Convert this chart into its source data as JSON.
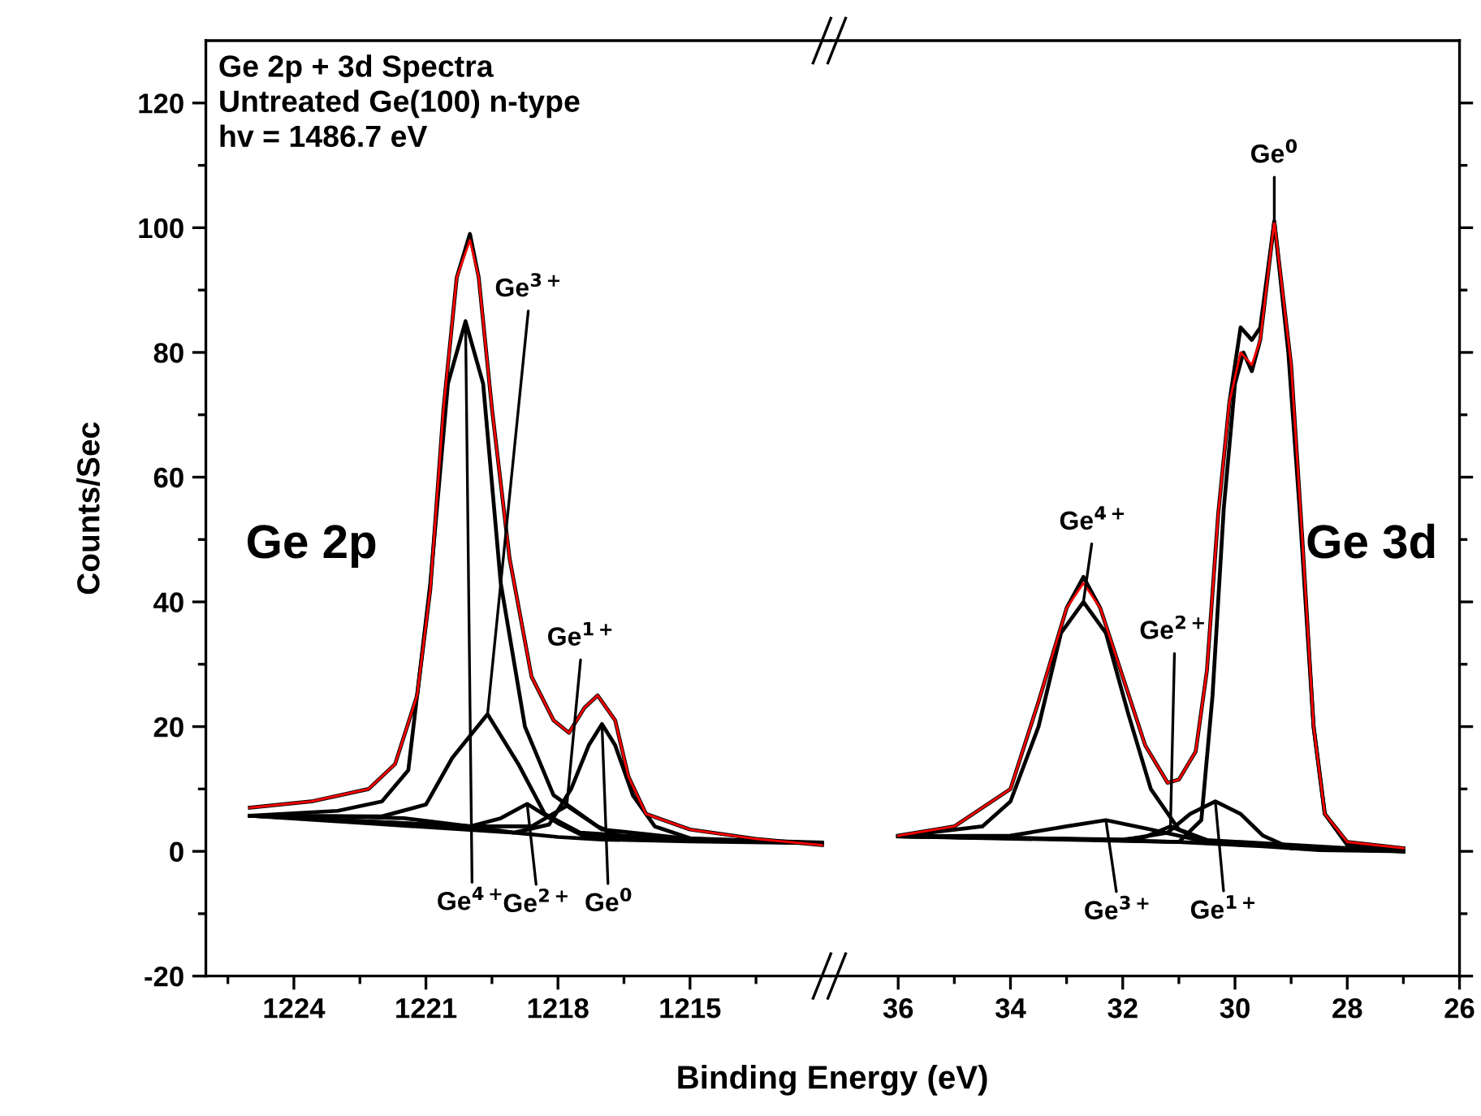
{
  "chart_data": [
    {
      "type": "line",
      "title": "Ge 2p + 3d Spectra\nUntreated Ge(100) n-type\nhv = 1486.7 eV",
      "ylabel": "Counts/Sec",
      "xlim": [
        1226,
        1211.8
      ],
      "xticks": [
        {
          "value": 1225.5,
          "label": null
        },
        1224,
        {
          "value": 1222.5,
          "label": null
        },
        1221,
        {
          "value": 1219.5,
          "label": null
        },
        1218,
        {
          "value": 1216.5,
          "label": null
        },
        1215,
        {
          "value": 1213.5,
          "label": null
        }
      ],
      "ylim": [
        -20,
        130
      ],
      "yticks": [
        -20,
        {
          "value": -10,
          "label": null
        },
        0,
        {
          "value": 10,
          "label": null
        },
        20,
        {
          "value": 30,
          "label": null
        },
        40,
        {
          "value": 50,
          "label": null
        },
        60,
        {
          "value": 70,
          "label": null
        },
        80,
        {
          "value": 90,
          "label": null
        },
        100,
        {
          "value": 110,
          "label": null
        },
        120
      ],
      "series": [
        {
          "color": "#000000",
          "x": [
            1225.0,
            1223.6,
            1222.3,
            1221.7,
            1221.2,
            1220.9,
            1220.6,
            1220.3,
            1220.0,
            1219.8,
            1219.5,
            1219.1,
            1218.6,
            1218.1,
            1217.75,
            1217.4,
            1217.1,
            1216.7,
            1216.4,
            1216.0,
            1215.0,
            1213.5,
            1212.0
          ],
          "values": [
            7,
            8,
            10,
            14,
            25,
            42,
            71,
            92,
            99,
            92,
            71,
            47,
            28,
            21,
            19,
            23,
            25,
            21,
            12,
            6,
            3.5,
            2,
            1
          ]
        },
        {
          "color": "#000000",
          "x": [
            1225,
            1223,
            1221.5,
            1220,
            1219,
            1218,
            1217,
            1215,
            1212
          ],
          "values": [
            5.7,
            5.6,
            5.3,
            4,
            3,
            2.3,
            1.9,
            1.6,
            1.3
          ]
        },
        {
          "color": "#000000",
          "x": [
            1225,
            1223,
            1222,
            1221.4,
            1220.9,
            1220.5,
            1220.1,
            1219.7,
            1219.3,
            1218.75,
            1218.1,
            1217,
            1215,
            1212
          ],
          "values": [
            5.7,
            6.5,
            8,
            13,
            43,
            75,
            85,
            75,
            43,
            20,
            9,
            3.5,
            2,
            1.4
          ]
        },
        {
          "color": "#000000",
          "x": [
            1225,
            1222,
            1221,
            1220.4,
            1219.6,
            1218.9,
            1218.3,
            1217.5,
            1215,
            1212
          ],
          "values": [
            5.7,
            5.6,
            7.5,
            15,
            22,
            14,
            6,
            3,
            1.8,
            1.3
          ]
        },
        {
          "color": "#000000",
          "x": [
            1225,
            1220,
            1219.3,
            1218.7,
            1218.0,
            1217.4,
            1212
          ],
          "values": [
            5.7,
            4,
            5.3,
            7.6,
            4.5,
            2.4,
            1.3
          ]
        },
        {
          "color": "#000000",
          "x": [
            1225,
            1220,
            1218.6,
            1217.8,
            1217.1,
            1216.5,
            1212
          ],
          "values": [
            5.7,
            4,
            4,
            7.3,
            4,
            2.2,
            1.3
          ]
        },
        {
          "color": "#000000",
          "x": [
            1225,
            1219,
            1218.2,
            1217.7,
            1217.3,
            1217.0,
            1216.7,
            1216.3,
            1215.8,
            1215,
            1212
          ],
          "values": [
            5.7,
            3,
            4.3,
            10,
            17,
            20.4,
            17,
            9,
            4,
            2.1,
            1.3
          ]
        },
        {
          "color": "#ff0000",
          "x": [
            1225.0,
            1223.6,
            1222.3,
            1221.7,
            1221.2,
            1220.9,
            1220.6,
            1220.3,
            1220.0,
            1219.8,
            1219.5,
            1219.1,
            1218.6,
            1218.1,
            1217.75,
            1217.4,
            1217.1,
            1216.7,
            1216.4,
            1216.0,
            1215.0,
            1213.5,
            1212.0
          ],
          "values": [
            7,
            8,
            10,
            14,
            25,
            42,
            71,
            92,
            98,
            92,
            71,
            47,
            28,
            21,
            19,
            23,
            25,
            21,
            12,
            6,
            3.5,
            2,
            1
          ]
        }
      ],
      "annotations": [
        "Ge 2p",
        {
          "text": "Ge$^{4+}$",
          "x": 1220.1,
          "y": 85
        },
        {
          "text": "Ge$^{3+}$",
          "x": 1219.6,
          "y": 22
        },
        {
          "text": "Ge$^{2+}$",
          "x": 1218.7,
          "y": 7.6
        },
        {
          "text": "Ge$^{1+}$",
          "x": 1217.8,
          "y": 7.3
        },
        {
          "text": "Ge$^{0}$",
          "x": 1217.0,
          "y": 20.4
        }
      ]
    },
    {
      "type": "line",
      "xlabel": "Binding Energy (eV)",
      "tick_labels": "x",
      "xlim": [
        37.2,
        26
      ],
      "xticks": [
        36,
        {
          "value": 35,
          "label": null
        },
        34,
        {
          "value": 33,
          "label": null
        },
        32,
        {
          "value": 31,
          "label": null
        },
        30,
        {
          "value": 29,
          "label": null
        },
        28,
        {
          "value": 27,
          "label": null
        },
        26
      ],
      "ylim": [
        -20,
        130
      ],
      "yticks": [
        -20,
        {
          "value": -10,
          "label": null
        },
        0,
        {
          "value": 10,
          "label": null
        },
        20,
        {
          "value": 30,
          "label": null
        },
        40,
        {
          "value": 50,
          "label": null
        },
        60,
        {
          "value": 70,
          "label": null
        },
        80,
        {
          "value": 90,
          "label": null
        },
        100,
        {
          "value": 110,
          "label": null
        },
        120
      ],
      "series": [
        {
          "color": "#000000",
          "x": [
            36.0,
            35.0,
            34.0,
            33.5,
            33.0,
            32.7,
            32.4,
            32.0,
            31.6,
            31.2,
            31.0,
            30.7,
            30.5,
            30.3,
            30.1,
            29.9,
            29.7,
            29.55,
            29.3,
            29.0,
            28.8,
            28.6,
            28.4,
            28.0,
            27.0
          ],
          "values": [
            2.5,
            4,
            10,
            24,
            39,
            44,
            39,
            28,
            17,
            11,
            11.5,
            16,
            29,
            54,
            72,
            84,
            82,
            84,
            101,
            78,
            50,
            20,
            6,
            1.5,
            0.5
          ]
        },
        {
          "color": "#000000",
          "x": [
            36,
            33,
            31,
            29.5,
            28.5,
            27
          ],
          "values": [
            2.4,
            2,
            1.5,
            0.8,
            0.2,
            0
          ]
        },
        {
          "color": "#000000",
          "x": [
            36,
            34.5,
            34,
            33.5,
            33.1,
            32.7,
            32.3,
            31.9,
            31.5,
            31,
            30.5,
            27
          ],
          "values": [
            2.4,
            4,
            8,
            20,
            35,
            40,
            35,
            22,
            10,
            3.5,
            1.8,
            0
          ]
        },
        {
          "color": "#000000",
          "x": [
            36,
            34,
            33,
            32.3,
            31.5,
            30.5,
            27
          ],
          "values": [
            2.4,
            2.5,
            4,
            5,
            3.5,
            1.5,
            0
          ]
        },
        {
          "color": "#000000",
          "x": [
            36,
            32,
            31.6,
            31.15,
            30.7,
            30.3,
            27
          ],
          "values": [
            2.4,
            1.9,
            2.3,
            4,
            2.3,
            1.3,
            0
          ]
        },
        {
          "color": "#000000",
          "x": [
            36,
            32,
            31.2,
            30.8,
            30.35,
            29.9,
            29.5,
            29,
            27
          ],
          "values": [
            2.4,
            1.8,
            3,
            6,
            8,
            6,
            2.5,
            0.5,
            0
          ]
        },
        {
          "color": "#000000",
          "x": [
            36,
            31,
            30.6,
            30.4,
            30.2,
            30.0,
            29.85,
            29.7,
            29.55,
            29.3,
            29.05,
            28.85,
            28.6,
            28.4,
            28,
            27
          ],
          "values": [
            2.4,
            1.5,
            5,
            25,
            55,
            75,
            80,
            77,
            82,
            101,
            80,
            55,
            20,
            6,
            1,
            0
          ]
        },
        {
          "color": "#ff0000",
          "x": [
            36.0,
            35.0,
            34.0,
            33.5,
            33.0,
            32.7,
            32.4,
            32.0,
            31.6,
            31.2,
            31.0,
            30.7,
            30.5,
            30.3,
            30.1,
            29.9,
            29.7,
            29.55,
            29.3,
            29.0,
            28.8,
            28.6,
            28.4,
            28.0,
            27.0
          ],
          "values": [
            2.5,
            4,
            10,
            24,
            39,
            43,
            39,
            28,
            17,
            11,
            11.5,
            16,
            29,
            54,
            72,
            80,
            78,
            82,
            101,
            78,
            50,
            20,
            6,
            1.5,
            0.5
          ]
        }
      ],
      "annotations": [
        "Ge 3d",
        {
          "text": "Ge$^{4+}$",
          "x": 32.7,
          "y": 40
        },
        {
          "text": "Ge$^{3+}$",
          "x": 32.3,
          "y": 5
        },
        {
          "text": "Ge$^{2+}$",
          "x": 31.15,
          "y": 4
        },
        {
          "text": "Ge$^{1+}$",
          "x": 30.35,
          "y": 8
        },
        {
          "text": "Ge$^{0}$",
          "x": 29.3,
          "y": 101
        }
      ]
    }
  ]
}
